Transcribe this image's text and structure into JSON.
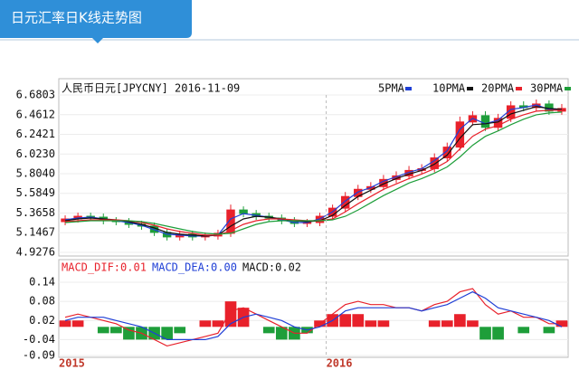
{
  "header": {
    "title": "日元汇率日K线走势图"
  },
  "chart_data": [
    {
      "type": "candlestick",
      "title": "人民币日元[JPYCNY] 2016-11-09",
      "up_color": "#e8212b",
      "down_color": "#1e9e3a",
      "grid": true,
      "ylim": [
        4.9276,
        6.6803
      ],
      "yticks": [
        6.6803,
        6.4612,
        6.2421,
        {
          "value": 6.023,
          "label": "6.0230"
        },
        {
          "value": 5.804,
          "label": "5.8040"
        },
        5.5849,
        5.3658,
        5.1467,
        4.9276
      ],
      "open": [
        5.27,
        5.3,
        5.33,
        5.32,
        5.28,
        5.27,
        5.24,
        5.22,
        5.15,
        5.1,
        5.13,
        5.1,
        5.11,
        5.14,
        5.4,
        5.36,
        5.33,
        5.31,
        5.28,
        5.25,
        5.26,
        5.33,
        5.42,
        5.55,
        5.63,
        5.66,
        5.74,
        5.78,
        5.84,
        5.86,
        5.98,
        6.1,
        6.38,
        6.45,
        6.32,
        6.42,
        6.56,
        6.54,
        6.58,
        6.5
      ],
      "high": [
        5.34,
        5.37,
        5.37,
        5.36,
        5.32,
        5.31,
        5.28,
        5.26,
        5.19,
        5.17,
        5.17,
        5.15,
        5.18,
        5.46,
        5.44,
        5.4,
        5.37,
        5.35,
        5.32,
        5.3,
        5.37,
        5.46,
        5.6,
        5.68,
        5.71,
        5.79,
        5.83,
        5.89,
        5.91,
        6.03,
        6.15,
        6.44,
        6.5,
        6.5,
        6.47,
        6.61,
        6.61,
        6.63,
        6.62,
        6.58
      ],
      "low": [
        5.23,
        5.26,
        5.28,
        5.24,
        5.23,
        5.2,
        5.18,
        5.11,
        5.06,
        5.06,
        5.06,
        5.06,
        5.07,
        5.1,
        5.32,
        5.29,
        5.27,
        5.24,
        5.21,
        5.21,
        5.22,
        5.29,
        5.38,
        5.51,
        5.59,
        5.62,
        5.7,
        5.74,
        5.8,
        5.82,
        5.94,
        6.06,
        6.34,
        6.28,
        6.28,
        6.38,
        6.5,
        6.5,
        6.46,
        6.46
      ],
      "close": [
        5.3,
        5.33,
        5.32,
        5.28,
        5.27,
        5.24,
        5.22,
        5.15,
        5.1,
        5.13,
        5.1,
        5.11,
        5.14,
        5.4,
        5.36,
        5.33,
        5.31,
        5.28,
        5.25,
        5.26,
        5.33,
        5.42,
        5.55,
        5.63,
        5.66,
        5.74,
        5.78,
        5.84,
        5.86,
        5.98,
        6.1,
        6.38,
        6.45,
        6.32,
        6.42,
        6.56,
        6.54,
        6.58,
        6.5,
        6.53
      ],
      "series": [
        {
          "name": "5PMA",
          "color": "#1f3fd6",
          "values": [
            5.29,
            5.31,
            5.32,
            5.3,
            5.28,
            5.26,
            5.23,
            5.18,
            5.13,
            5.12,
            5.11,
            5.11,
            5.12,
            5.3,
            5.36,
            5.34,
            5.32,
            5.29,
            5.26,
            5.26,
            5.3,
            5.38,
            5.5,
            5.6,
            5.65,
            5.72,
            5.77,
            5.82,
            5.86,
            5.95,
            6.06,
            6.3,
            6.42,
            6.36,
            6.4,
            6.52,
            6.54,
            6.57,
            6.52,
            6.52
          ]
        },
        {
          "name": "10PMA",
          "color": "#111111",
          "values": [
            5.28,
            5.3,
            5.31,
            5.3,
            5.29,
            5.27,
            5.24,
            5.2,
            5.15,
            5.13,
            5.12,
            5.11,
            5.12,
            5.22,
            5.3,
            5.33,
            5.32,
            5.3,
            5.28,
            5.27,
            5.28,
            5.34,
            5.45,
            5.55,
            5.62,
            5.69,
            5.75,
            5.8,
            5.84,
            5.91,
            6.01,
            6.2,
            6.35,
            6.36,
            6.38,
            6.47,
            6.51,
            6.55,
            6.53,
            6.52
          ]
        },
        {
          "name": "20PMA",
          "color": "#e8212b",
          "values": [
            5.27,
            5.28,
            5.29,
            5.29,
            5.29,
            5.28,
            5.26,
            5.23,
            5.19,
            5.16,
            5.14,
            5.12,
            5.12,
            5.17,
            5.24,
            5.28,
            5.3,
            5.3,
            5.29,
            5.28,
            5.28,
            5.3,
            5.38,
            5.47,
            5.55,
            5.63,
            5.69,
            5.75,
            5.8,
            5.86,
            5.94,
            6.08,
            6.22,
            6.3,
            6.34,
            6.41,
            6.46,
            6.5,
            6.51,
            6.51
          ]
        },
        {
          "name": "30PMA",
          "color": "#1e9e3a",
          "values": [
            5.26,
            5.27,
            5.28,
            5.28,
            5.28,
            5.28,
            5.27,
            5.25,
            5.22,
            5.19,
            5.16,
            5.14,
            5.13,
            5.14,
            5.19,
            5.24,
            5.27,
            5.28,
            5.28,
            5.28,
            5.28,
            5.29,
            5.33,
            5.4,
            5.48,
            5.56,
            5.63,
            5.7,
            5.75,
            5.81,
            5.88,
            5.99,
            6.12,
            6.22,
            6.28,
            6.35,
            6.41,
            6.46,
            6.48,
            6.49
          ]
        }
      ]
    },
    {
      "type": "macd",
      "categories": [
        "2015",
        null,
        null,
        null,
        null,
        null,
        null,
        null,
        null,
        null,
        null,
        null,
        null,
        null,
        null,
        null,
        null,
        null,
        null,
        null,
        null,
        "2016",
        null,
        null,
        null,
        null,
        null,
        null,
        null,
        null,
        null,
        null,
        null,
        null,
        null,
        null,
        null,
        null,
        null,
        null
      ],
      "ylim": [
        -0.09,
        0.14
      ],
      "yticks": [
        0.14,
        0.08,
        0.02,
        -0.04,
        -0.09
      ],
      "series": [
        {
          "name": "MACD_DIF:0.01",
          "color": "#e8212b",
          "values": [
            0.03,
            0.04,
            0.03,
            0.02,
            0.01,
            -0.01,
            -0.02,
            -0.04,
            -0.06,
            -0.05,
            -0.04,
            -0.03,
            -0.02,
            0.05,
            0.06,
            0.04,
            0.02,
            0.0,
            -0.02,
            -0.02,
            0.01,
            0.04,
            0.07,
            0.08,
            0.07,
            0.07,
            0.06,
            0.06,
            0.05,
            0.07,
            0.08,
            0.11,
            0.12,
            0.07,
            0.04,
            0.05,
            0.03,
            0.03,
            0.01,
            0.01
          ]
        },
        {
          "name": "MACD_DEA:0.00",
          "color": "#1f3fd6",
          "values": [
            0.02,
            0.03,
            0.03,
            0.03,
            0.02,
            0.01,
            0.0,
            -0.02,
            -0.04,
            -0.04,
            -0.04,
            -0.04,
            -0.03,
            0.01,
            0.03,
            0.04,
            0.03,
            0.02,
            0.0,
            -0.01,
            0.0,
            0.02,
            0.05,
            0.06,
            0.06,
            0.06,
            0.06,
            0.06,
            0.05,
            0.06,
            0.07,
            0.09,
            0.11,
            0.09,
            0.06,
            0.05,
            0.04,
            0.03,
            0.02,
            0.0
          ]
        }
      ],
      "histogram": {
        "name": "MACD:0.02",
        "color": "#111111",
        "up_color": "#e8212b",
        "down_color": "#1e9e3a",
        "values": [
          0.02,
          0.02,
          0,
          -0.02,
          -0.02,
          -0.04,
          -0.04,
          -0.04,
          -0.04,
          -0.02,
          0,
          0.02,
          0.02,
          0.08,
          0.06,
          0,
          -0.02,
          -0.04,
          -0.04,
          -0.02,
          0.02,
          0.04,
          0.04,
          0.04,
          0.02,
          0.02,
          0,
          0,
          0,
          0.02,
          0.02,
          0.04,
          0.02,
          -0.04,
          -0.04,
          0,
          -0.02,
          0,
          -0.02,
          0.02
        ]
      }
    }
  ]
}
